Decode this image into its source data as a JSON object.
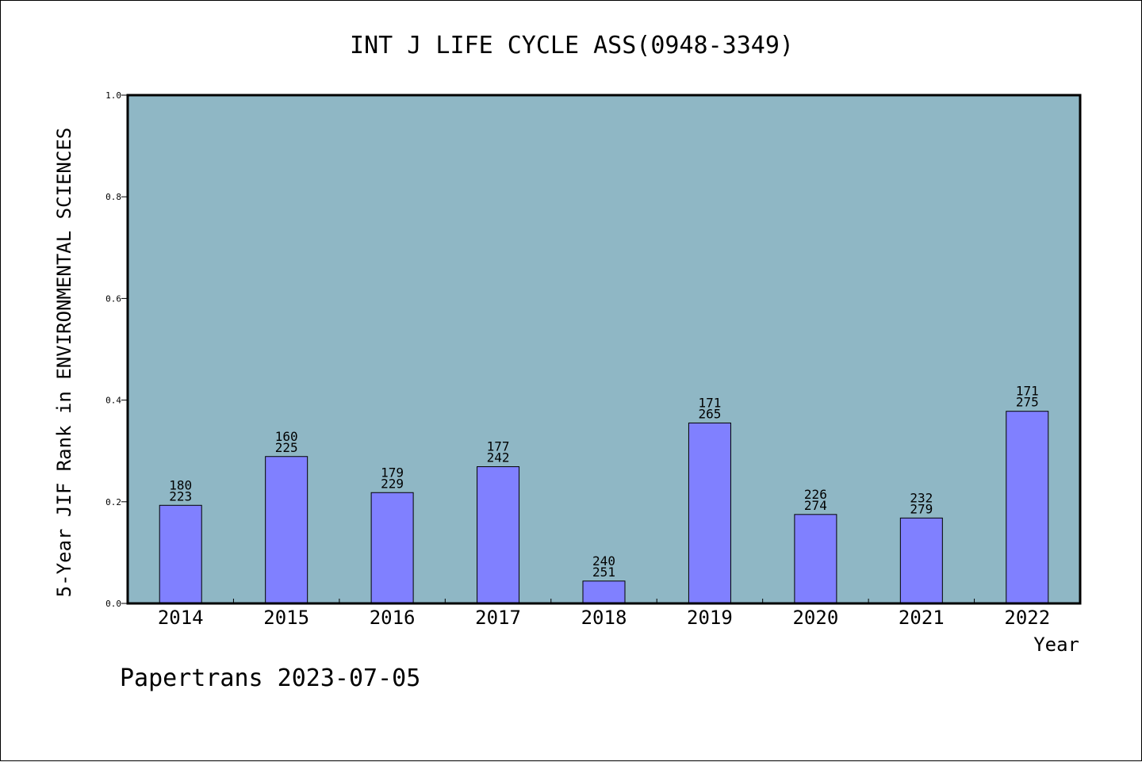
{
  "chart_data": {
    "type": "bar",
    "title": "INT J LIFE CYCLE ASS(0948-3349)",
    "ylabel": "5-Year JIF Rank in ENVIRONMENTAL SCIENCES",
    "xlabel": "Year",
    "footer": "Papertrans 2023-07-05",
    "ylim": [
      0,
      1
    ],
    "yticks": [
      0,
      0.2,
      0.4,
      0.6,
      0.8,
      1
    ],
    "ytick_labels": [
      "0.0",
      "0.2",
      "0.4",
      "0.6",
      "0.8",
      "1.0"
    ],
    "categories": [
      "2014",
      "2015",
      "2016",
      "2017",
      "2018",
      "2019",
      "2020",
      "2021",
      "2022"
    ],
    "values": [
      0.193,
      0.289,
      0.218,
      0.269,
      0.044,
      0.355,
      0.175,
      0.168,
      0.378
    ],
    "labels_top": [
      "180",
      "160",
      "179",
      "177",
      "240",
      "171",
      "226",
      "232",
      "171"
    ],
    "labels_bottom": [
      "223",
      "225",
      "229",
      "242",
      "251",
      "265",
      "274",
      "279",
      "275"
    ],
    "grid": false,
    "colors": {
      "plot_background": "#8fb7c5",
      "bar_fill": "#8080ff",
      "bar_stroke": "#000000",
      "axis": "#000000"
    }
  }
}
